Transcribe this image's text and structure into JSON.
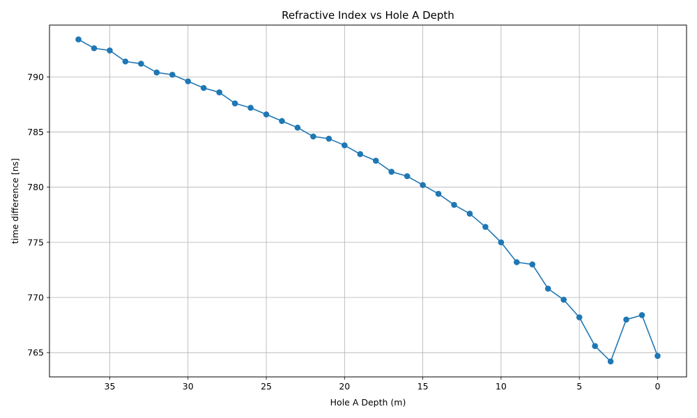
{
  "colors": {
    "series": "#1f77b4",
    "grid": "#b0b0b0",
    "axis": "#000000",
    "background": "#ffffff"
  },
  "chart_data": {
    "type": "line",
    "title": "Refractive Index vs Hole A Depth",
    "xlabel": "Hole A Depth (m)",
    "ylabel": "time difference [ns]",
    "x_inverted": true,
    "xlim": [
      38.85,
      -1.85
    ],
    "ylim": [
      762.8,
      794.7
    ],
    "xticks": [
      35,
      30,
      25,
      20,
      15,
      10,
      5,
      0
    ],
    "yticks": [
      765,
      770,
      775,
      780,
      785,
      790
    ],
    "grid": true,
    "marker": "circle",
    "series": [
      {
        "color": "#1f77b4",
        "x": [
          37,
          36,
          35,
          34,
          33,
          32,
          31,
          30,
          29,
          28,
          27,
          26,
          25,
          24,
          23,
          22,
          21,
          20,
          19,
          18,
          17,
          16,
          15,
          14,
          13,
          12,
          11,
          10,
          9,
          8,
          7,
          6,
          5,
          4,
          3,
          2,
          1,
          0
        ],
        "y": [
          793.4,
          792.6,
          792.4,
          791.4,
          791.2,
          790.4,
          790.2,
          789.6,
          789.0,
          788.6,
          787.6,
          787.2,
          786.6,
          786.0,
          785.4,
          784.6,
          784.4,
          783.8,
          783.0,
          782.4,
          781.4,
          781.0,
          780.2,
          779.4,
          778.4,
          777.6,
          776.4,
          775.0,
          773.2,
          773.0,
          770.8,
          769.8,
          768.2,
          765.6,
          764.2,
          768.0,
          768.4,
          764.7
        ]
      }
    ]
  }
}
